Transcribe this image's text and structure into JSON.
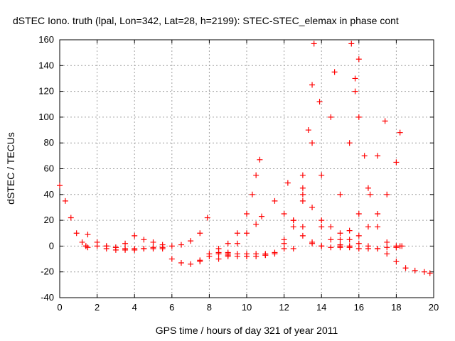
{
  "chart_data": {
    "type": "scatter",
    "title": "dSTEC Iono. truth (lpal, Lon=342, Lat=28, h=2199): STEC-STEC_elemax in phase cont",
    "xlabel": "GPS time / hours of day 321 of year 2011",
    "ylabel": "dSTEC  / TECUs",
    "xlim": [
      0,
      20
    ],
    "ylim": [
      -40,
      160
    ],
    "x_ticks": [
      0,
      2,
      4,
      6,
      8,
      10,
      12,
      14,
      16,
      18,
      20
    ],
    "y_ticks": [
      -40,
      -20,
      0,
      20,
      40,
      60,
      80,
      100,
      120,
      140,
      160
    ],
    "grid": true,
    "marker": "plus",
    "color": "#ff0000",
    "series": [
      {
        "x": [
          0.0,
          0.3,
          0.6,
          0.9,
          1.2,
          1.4
        ],
        "y": [
          47,
          35,
          22,
          10,
          3,
          0
        ]
      },
      {
        "x": [
          1.4,
          2.0,
          2.5,
          3.0,
          3.5,
          4.0,
          4.5,
          5.0,
          5.5
        ],
        "y": [
          0,
          0,
          0,
          -1,
          -2,
          -2,
          -2,
          -1,
          -1
        ]
      },
      {
        "x": [
          1.5,
          2.0,
          2.5,
          3.0,
          3.5,
          4.0,
          4.5,
          5.0,
          5.5,
          6.0,
          6.5,
          7.0,
          7.5,
          7.9
        ],
        "y": [
          9,
          3,
          0,
          -1,
          2,
          8,
          5,
          3,
          1,
          0,
          1,
          4,
          10,
          22
        ]
      },
      {
        "x": [
          1.5,
          2.5,
          3.0,
          3.5,
          4.0,
          4.5,
          5.0,
          5.5
        ],
        "y": [
          -1,
          -2,
          -3,
          -3,
          -3,
          -2,
          -2,
          -2
        ]
      },
      {
        "x": [
          6.0,
          6.5,
          7.0,
          7.5,
          8.0,
          8.5,
          9.0,
          9.5,
          10.0,
          10.5,
          11.0,
          11.5,
          12.0,
          12.5,
          13.0,
          13.3,
          13.5,
          13.6
        ],
        "y": [
          -10,
          -13,
          -14,
          -12,
          -8,
          -6,
          -6,
          -6,
          -6,
          -6,
          -6,
          -5,
          5,
          20,
          55,
          90,
          125,
          157
        ]
      },
      {
        "x": [
          7.5,
          8.0,
          8.5,
          9.0,
          9.5,
          10.0,
          10.3,
          10.5,
          10.7
        ],
        "y": [
          -11,
          -6,
          -2,
          2,
          10,
          25,
          40,
          55,
          67
        ]
      },
      {
        "x": [
          8.5,
          9.0,
          9.5,
          10.0,
          10.5,
          10.8
        ],
        "y": [
          -10,
          -5,
          2,
          10,
          17,
          23
        ]
      },
      {
        "x": [
          8.5,
          9.0,
          9.5,
          10.0,
          10.5,
          11.0,
          11.5,
          12.0,
          12.5,
          13.0,
          13.5,
          13.9
        ],
        "y": [
          -5,
          -7,
          -8,
          -8,
          -8,
          -7,
          -6,
          2,
          20,
          45,
          80,
          112
        ]
      },
      {
        "x": [
          9.0,
          10.0,
          11.0,
          12.0,
          13.0,
          14.0,
          14.5,
          14.7
        ],
        "y": [
          -8,
          -8,
          -7,
          -2,
          15,
          55,
          100,
          135
        ]
      },
      {
        "x": [
          11.5,
          12.0,
          12.5,
          13.0,
          13.5,
          14.0,
          14.5,
          15.0,
          15.5
        ],
        "y": [
          35,
          25,
          15,
          8,
          3,
          0,
          -1,
          -1,
          0
        ]
      },
      {
        "x": [
          12.2,
          13.0,
          14.0,
          15.0,
          15.5,
          16.0,
          16.5,
          17.0,
          17.5,
          18.0,
          18.5,
          19.0,
          19.5,
          19.8
        ],
        "y": [
          49,
          35,
          20,
          10,
          5,
          2,
          0,
          -2,
          -6,
          -12,
          -17,
          -19,
          -20,
          -21
        ]
      },
      {
        "x": [
          13.0,
          13.5,
          14.0,
          14.5,
          15.0,
          15.5,
          16.0,
          16.5,
          17.0,
          17.5,
          18.0,
          18.2
        ],
        "y": [
          40,
          30,
          15,
          5,
          0,
          -1,
          -2,
          -2,
          -2,
          -1,
          -1,
          0
        ]
      },
      {
        "x": [
          12.5,
          13.5,
          14.5,
          15.0,
          15.5,
          15.8,
          16.0
        ],
        "y": [
          -2,
          2,
          15,
          40,
          80,
          120,
          145
        ]
      },
      {
        "x": [
          15.6,
          15.8,
          16.0,
          16.3,
          16.6,
          17.0,
          17.5,
          18.0,
          18.3
        ],
        "y": [
          157,
          130,
          100,
          70,
          40,
          15,
          3,
          0,
          0
        ]
      },
      {
        "x": [
          14.0,
          15.0,
          15.5,
          16.0,
          16.5,
          17.0,
          17.4
        ],
        "y": [
          0,
          5,
          12,
          25,
          45,
          70,
          97
        ]
      },
      {
        "x": [
          15.0,
          16.0,
          16.5,
          17.0,
          17.5,
          18.0,
          18.2
        ],
        "y": [
          1,
          8,
          15,
          25,
          40,
          65,
          88
        ]
      }
    ]
  }
}
